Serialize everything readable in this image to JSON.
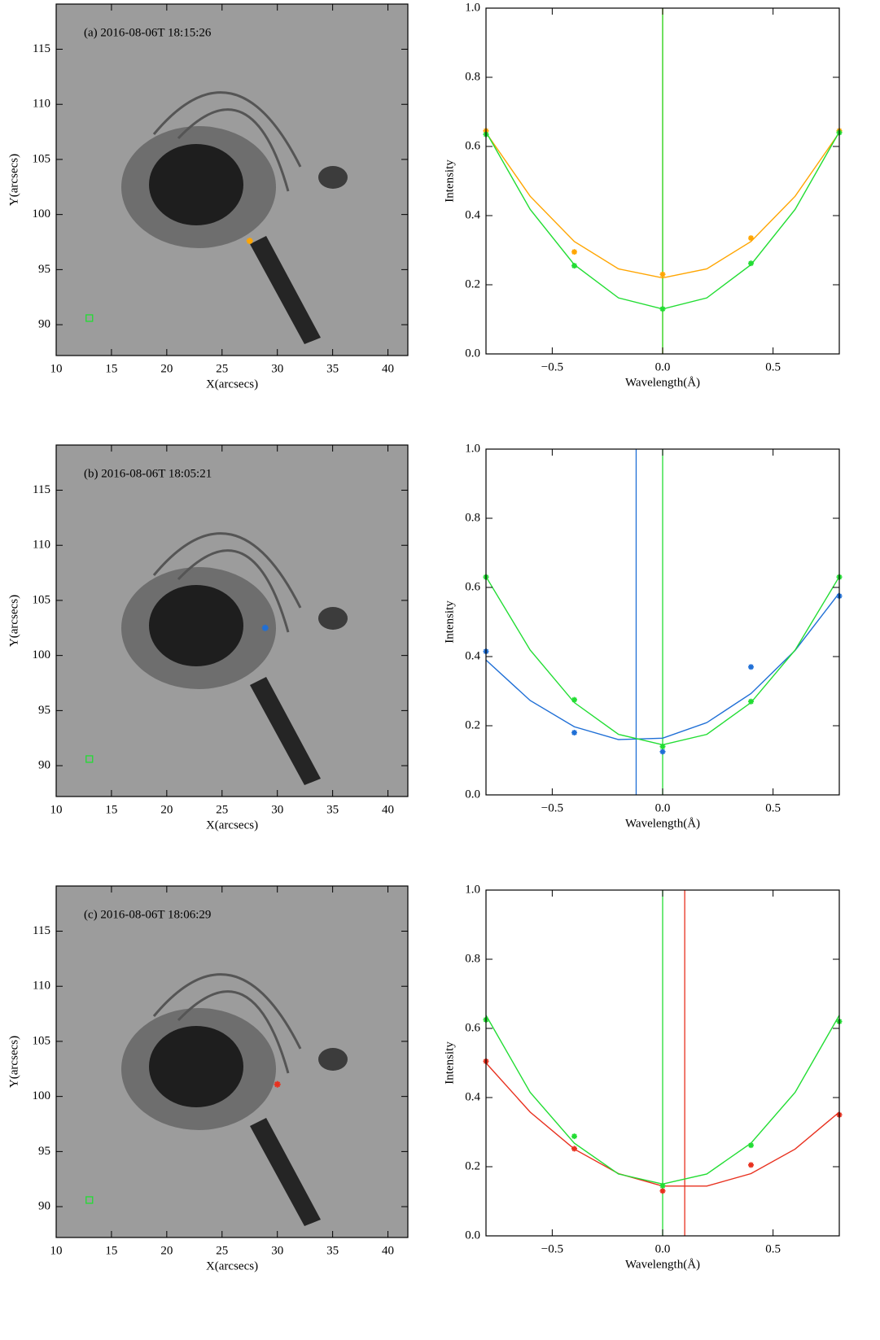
{
  "chart_data": [
    {
      "type": "scatter",
      "title": "(a) 2016-08-06T 18:15:26",
      "xlabel": "X(arcsecs)",
      "ylabel": "Y(arcsecs)",
      "xlim": [
        10,
        41.8
      ],
      "ylim": [
        87.2,
        119.1
      ],
      "xticks": [
        10,
        15,
        20,
        25,
        30,
        35,
        40
      ],
      "yticks": [
        90,
        95,
        100,
        105,
        110,
        115
      ],
      "series": [
        {
          "color": "#ffa500",
          "marker": "star",
          "x": [
            27.5
          ],
          "values": [
            97.6
          ]
        },
        {
          "color": "#22dd33",
          "marker": "square",
          "x": [
            13
          ],
          "values": [
            90.6
          ]
        }
      ]
    },
    {
      "type": "line",
      "xlabel": "Wavelength(Å)",
      "ylabel": "Intensity",
      "xlim": [
        -0.8,
        0.8
      ],
      "ylim": [
        0,
        1
      ],
      "xticks": [
        {
          "value": -0.5,
          "label": "−0.5"
        },
        {
          "value": 0,
          "label": "0.0"
        },
        0.5
      ],
      "yticks": [
        {
          "value": 0,
          "label": "0.0"
        },
        0.2,
        0.4,
        0.6,
        0.8,
        {
          "value": 1,
          "label": "1.0"
        }
      ],
      "series": [
        {
          "color": "#ffa500",
          "mode": "line",
          "x": [
            -0.8,
            -0.6,
            -0.4,
            -0.2,
            0,
            0.2,
            0.4,
            0.6,
            0.8
          ],
          "values": [
            0.64,
            0.456,
            0.325,
            0.246,
            0.22,
            0.246,
            0.325,
            0.456,
            0.64
          ]
        },
        {
          "color": "#22dd33",
          "mode": "line",
          "x": [
            -0.8,
            -0.6,
            -0.4,
            -0.2,
            0,
            0.2,
            0.4,
            0.6,
            0.8
          ],
          "values": [
            0.642,
            0.418,
            0.258,
            0.162,
            0.13,
            0.162,
            0.258,
            0.418,
            0.642
          ]
        },
        {
          "color": "#ffa500",
          "mode": "markers",
          "x": [
            -0.8,
            -0.4,
            0,
            0.4,
            0.8
          ],
          "values": [
            0.645,
            0.295,
            0.23,
            0.335,
            0.645
          ]
        },
        {
          "color": "#22dd33",
          "mode": "markers",
          "x": [
            -0.8,
            -0.4,
            0,
            0.4,
            0.8
          ],
          "values": [
            0.635,
            0.255,
            0.13,
            0.262,
            0.64
          ]
        }
      ],
      "vlines": [
        {
          "value": 0,
          "color": "#ffa500"
        },
        {
          "value": 0,
          "color": "#22dd33"
        }
      ]
    },
    {
      "type": "scatter",
      "title": "(b) 2016-08-06T 18:05:21",
      "xlabel": "X(arcsecs)",
      "ylabel": "Y(arcsecs)",
      "xlim": [
        10,
        41.8
      ],
      "ylim": [
        87.2,
        119.1
      ],
      "xticks": [
        10,
        15,
        20,
        25,
        30,
        35,
        40
      ],
      "yticks": [
        90,
        95,
        100,
        105,
        110,
        115
      ],
      "series": [
        {
          "color": "#1f6fd6",
          "marker": "star",
          "x": [
            28.9
          ],
          "values": [
            102.5
          ]
        },
        {
          "color": "#22dd33",
          "marker": "square",
          "x": [
            13
          ],
          "values": [
            90.6
          ]
        }
      ]
    },
    {
      "type": "line",
      "xlabel": "Wavelength(Å)",
      "ylabel": "Intensity",
      "xlim": [
        -0.8,
        0.8
      ],
      "ylim": [
        0,
        1
      ],
      "xticks": [
        {
          "value": -0.5,
          "label": "−0.5"
        },
        {
          "value": 0,
          "label": "0.0"
        },
        0.5
      ],
      "yticks": [
        {
          "value": 0,
          "label": "0.0"
        },
        0.2,
        0.4,
        0.6,
        0.8,
        {
          "value": 1,
          "label": "1.0"
        }
      ],
      "series": [
        {
          "color": "#1f6fd6",
          "mode": "line",
          "x": [
            -0.8,
            -0.6,
            -0.4,
            -0.2,
            0,
            0.2,
            0.4,
            0.6,
            0.8
          ],
          "values": [
            0.39,
            0.273,
            0.197,
            0.16,
            0.164,
            0.209,
            0.293,
            0.418,
            0.584
          ]
        },
        {
          "color": "#22dd33",
          "mode": "line",
          "x": [
            -0.8,
            -0.6,
            -0.4,
            -0.2,
            0,
            0.2,
            0.4,
            0.6,
            0.8
          ],
          "values": [
            0.631,
            0.419,
            0.267,
            0.175,
            0.145,
            0.175,
            0.267,
            0.419,
            0.631
          ]
        },
        {
          "color": "#1f6fd6",
          "mode": "markers",
          "x": [
            -0.8,
            -0.4,
            0,
            0.4,
            0.8
          ],
          "values": [
            0.415,
            0.18,
            0.125,
            0.37,
            0.575
          ]
        },
        {
          "color": "#22dd33",
          "mode": "markers",
          "x": [
            -0.8,
            -0.4,
            0,
            0.4,
            0.8
          ],
          "values": [
            0.63,
            0.275,
            0.14,
            0.27,
            0.63
          ]
        }
      ],
      "vlines": [
        {
          "value": -0.12,
          "color": "#1f6fd6"
        },
        {
          "value": 0,
          "color": "#22dd33"
        }
      ]
    },
    {
      "type": "scatter",
      "title": "(c) 2016-08-06T 18:06:29",
      "xlabel": "X(arcsecs)",
      "ylabel": "Y(arcsecs)",
      "xlim": [
        10,
        41.8
      ],
      "ylim": [
        87.2,
        119.1
      ],
      "xticks": [
        10,
        15,
        20,
        25,
        30,
        35,
        40
      ],
      "yticks": [
        90,
        95,
        100,
        105,
        110,
        115
      ],
      "series": [
        {
          "color": "#e8301e",
          "marker": "star",
          "x": [
            30
          ],
          "values": [
            101.1
          ]
        },
        {
          "color": "#22dd33",
          "marker": "square",
          "x": [
            13
          ],
          "values": [
            90.6
          ]
        }
      ]
    },
    {
      "type": "line",
      "xlabel": "Wavelength(Å)",
      "ylabel": "Intensity",
      "xlim": [
        -0.8,
        0.8
      ],
      "ylim": [
        0,
        1
      ],
      "xticks": [
        {
          "value": -0.5,
          "label": "−0.5"
        },
        {
          "value": 0,
          "label": "0.0"
        },
        0.5
      ],
      "yticks": [
        {
          "value": 0,
          "label": "0.0"
        },
        0.2,
        0.4,
        0.6,
        0.8,
        {
          "value": 1,
          "label": "1.0"
        }
      ],
      "series": [
        {
          "color": "#e8301e",
          "mode": "line",
          "x": [
            -0.8,
            -0.6,
            -0.4,
            -0.2,
            0,
            0.2,
            0.4,
            0.6,
            0.8
          ],
          "values": [
            0.5,
            0.358,
            0.251,
            0.18,
            0.144,
            0.144,
            0.18,
            0.251,
            0.358
          ]
        },
        {
          "color": "#22dd33",
          "mode": "line",
          "x": [
            -0.8,
            -0.6,
            -0.4,
            -0.2,
            0,
            0.2,
            0.4,
            0.6,
            0.8
          ],
          "values": [
            0.638,
            0.415,
            0.268,
            0.179,
            0.15,
            0.179,
            0.268,
            0.415,
            0.638
          ]
        },
        {
          "color": "#e8301e",
          "mode": "markers",
          "x": [
            -0.8,
            -0.4,
            0,
            0.4,
            0.8
          ],
          "values": [
            0.505,
            0.252,
            0.13,
            0.205,
            0.35
          ]
        },
        {
          "color": "#22dd33",
          "mode": "markers",
          "x": [
            -0.8,
            -0.4,
            0,
            0.4,
            0.8
          ],
          "values": [
            0.625,
            0.288,
            0.145,
            0.262,
            0.62
          ]
        }
      ],
      "vlines": [
        {
          "value": 0,
          "color": "#22dd33"
        },
        {
          "value": 0.1,
          "color": "#e8301e"
        }
      ]
    }
  ]
}
